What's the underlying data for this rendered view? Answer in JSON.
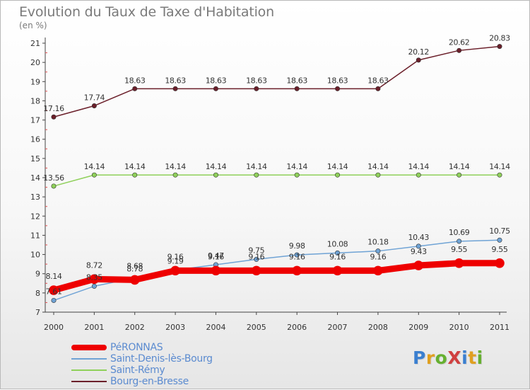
{
  "title": "Evolution du Taux de Taxe d'Habitation",
  "subtitle": "(en %)",
  "logo": {
    "text": "ProXiti",
    "colors": [
      "#3a7fd0",
      "#e0a020",
      "#66b030",
      "#d04040",
      "#3a7fd0",
      "#e0a020",
      "#66b030"
    ]
  },
  "chart_data": {
    "type": "line",
    "categories": [
      "2000",
      "2001",
      "2002",
      "2003",
      "2004",
      "2005",
      "2006",
      "2007",
      "2008",
      "2009",
      "2010",
      "2011"
    ],
    "ylim": [
      7,
      21
    ],
    "yticks": [
      "7",
      "8",
      "9",
      "10",
      "11",
      "12",
      "13",
      "14",
      "15",
      "16",
      "17",
      "18",
      "19",
      "20",
      "21"
    ],
    "grid": false,
    "legend_position": "bottom-left",
    "series": [
      {
        "name": "Bourg-en-Bresse",
        "color": "#6b1f2a",
        "values": [
          17.16,
          17.74,
          18.63,
          18.63,
          18.63,
          18.63,
          18.63,
          18.63,
          18.63,
          20.12,
          20.62,
          20.83
        ],
        "labels": [
          "17.16",
          "17.74",
          "18.63",
          "18.63",
          "18.63",
          "18.63",
          "18.63",
          "18.63",
          "18.63",
          "20.12",
          "20.62",
          "20.83"
        ]
      },
      {
        "name": "Saint-Rémy",
        "color": "#8fd05a",
        "values": [
          13.56,
          14.14,
          14.14,
          14.14,
          14.14,
          14.14,
          14.14,
          14.14,
          14.14,
          14.14,
          14.14,
          14.14
        ],
        "labels": [
          "13.56",
          "14.14",
          "14.14",
          "14.14",
          "14.14",
          "14.14",
          "14.14",
          "14.14",
          "14.14",
          "14.14",
          "14.14",
          "14.14"
        ]
      },
      {
        "name": "Saint-Denis-lès-Bourg",
        "color": "#6fa3d5",
        "values": [
          7.61,
          8.35,
          8.78,
          9.19,
          9.47,
          9.75,
          9.98,
          10.08,
          10.18,
          10.43,
          10.69,
          10.75
        ],
        "labels": [
          "7.61",
          "8.35",
          "8.78",
          "9.19",
          "9.47",
          "9.75",
          "9.98",
          "10.08",
          "10.18",
          "10.43",
          "10.69",
          "10.75"
        ]
      },
      {
        "name": "PéRONNAS",
        "color": "#ee0000",
        "values": [
          8.14,
          8.72,
          8.68,
          9.16,
          9.16,
          9.16,
          9.16,
          9.16,
          9.16,
          9.43,
          9.55,
          9.55
        ],
        "labels": [
          "8.14",
          "8.72",
          "8.68",
          "9.16",
          "9.16",
          "9.16",
          "9.16",
          "9.16",
          "9.16",
          "9.43",
          "9.55",
          "9.55"
        ]
      }
    ]
  },
  "legend": [
    {
      "label": "PéRONNAS",
      "color": "#ee0000"
    },
    {
      "label": "Saint-Denis-lès-Bourg",
      "color": "#6fa3d5"
    },
    {
      "label": "Saint-Rémy",
      "color": "#8fd05a"
    },
    {
      "label": "Bourg-en-Bresse",
      "color": "#6b1f2a"
    }
  ]
}
